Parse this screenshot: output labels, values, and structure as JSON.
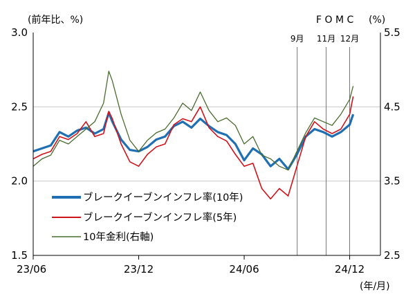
{
  "chart_data": {
    "type": "line",
    "title": "",
    "y_left_unit": "(前年比、%)",
    "y_right_unit": "(%)",
    "x_unit": "(年/月)",
    "ylim_left": [
      1.5,
      3.0
    ],
    "ylim_right": [
      2.5,
      5.5
    ],
    "yticks_left": [
      "1.5",
      "2.0",
      "2.5",
      "3.0"
    ],
    "yticks_right": [
      "2.5",
      "3.5",
      "4.5",
      "5.5"
    ],
    "xticks": [
      "23/06",
      "23/12",
      "24/06",
      "24/12"
    ],
    "grid": true,
    "legend_position": "bottom-left",
    "annotations": {
      "fomc_label": "F O M C",
      "events": [
        {
          "label": "9月",
          "x": 14.6
        },
        {
          "label": "11月",
          "x": 16.2
        },
        {
          "label": "12月",
          "x": 17.5
        }
      ]
    },
    "series": [
      {
        "name": "ブレークイーブンインフレ率(10年)",
        "axis": "left",
        "color": "#1f6fb2",
        "x": [
          0,
          0.5,
          1,
          1.5,
          2,
          2.5,
          3,
          3.5,
          4,
          4.3,
          4.5,
          5,
          5.5,
          6,
          6.5,
          7,
          7.5,
          8,
          8.5,
          9,
          9.5,
          10,
          10.5,
          11,
          11.5,
          12,
          12.5,
          13,
          13.5,
          14,
          14.5,
          15,
          15.5,
          16,
          16.5,
          17,
          17.5,
          18,
          18.2
        ],
        "y": [
          2.2,
          2.22,
          2.24,
          2.33,
          2.3,
          2.34,
          2.36,
          2.32,
          2.35,
          2.46,
          2.4,
          2.28,
          2.21,
          2.2,
          2.23,
          2.28,
          2.3,
          2.37,
          2.4,
          2.36,
          2.42,
          2.37,
          2.33,
          2.31,
          2.25,
          2.14,
          2.22,
          2.18,
          2.1,
          2.15,
          2.08,
          2.18,
          2.3,
          2.35,
          2.33,
          2.3,
          2.33,
          2.38,
          2.45
        ]
      },
      {
        "name": "ブレークイーブンインフレ率(5年)",
        "axis": "left",
        "color": "#d0121b",
        "x": [
          0,
          0.5,
          1,
          1.5,
          2,
          2.5,
          3,
          3.5,
          4,
          4.3,
          4.5,
          5,
          5.5,
          6,
          6.5,
          7,
          7.5,
          8,
          8.5,
          9,
          9.5,
          10,
          10.5,
          11,
          11.5,
          12,
          12.5,
          13,
          13.5,
          14,
          14.5,
          15,
          15.5,
          16,
          16.5,
          17,
          17.5,
          18,
          18.2
        ],
        "y": [
          2.15,
          2.18,
          2.2,
          2.3,
          2.28,
          2.32,
          2.4,
          2.3,
          2.32,
          2.47,
          2.42,
          2.25,
          2.13,
          2.1,
          2.18,
          2.23,
          2.25,
          2.38,
          2.42,
          2.4,
          2.5,
          2.36,
          2.3,
          2.27,
          2.18,
          2.1,
          2.12,
          1.95,
          1.88,
          1.95,
          1.9,
          2.1,
          2.3,
          2.4,
          2.35,
          2.32,
          2.35,
          2.45,
          2.57
        ]
      },
      {
        "name": "10年金利(右軸)",
        "axis": "right",
        "color": "#4a6b2f",
        "x": [
          0,
          0.5,
          1,
          1.5,
          2,
          2.5,
          3,
          3.5,
          4,
          4.3,
          4.5,
          5,
          5.5,
          6,
          6.5,
          7,
          7.5,
          8,
          8.5,
          9,
          9.5,
          10,
          10.5,
          11,
          11.5,
          12,
          12.5,
          13,
          13.5,
          14,
          14.5,
          15,
          15.5,
          16,
          16.5,
          17,
          17.5,
          18,
          18.2
        ],
        "y": [
          3.7,
          3.8,
          3.85,
          4.05,
          4.0,
          4.1,
          4.2,
          4.3,
          4.55,
          4.98,
          4.85,
          4.4,
          4.05,
          3.9,
          4.05,
          4.15,
          4.2,
          4.35,
          4.55,
          4.45,
          4.7,
          4.45,
          4.3,
          4.35,
          4.25,
          4.0,
          4.1,
          3.85,
          3.8,
          3.7,
          3.65,
          3.9,
          4.15,
          4.35,
          4.3,
          4.25,
          4.4,
          4.6,
          4.78
        ]
      }
    ]
  }
}
